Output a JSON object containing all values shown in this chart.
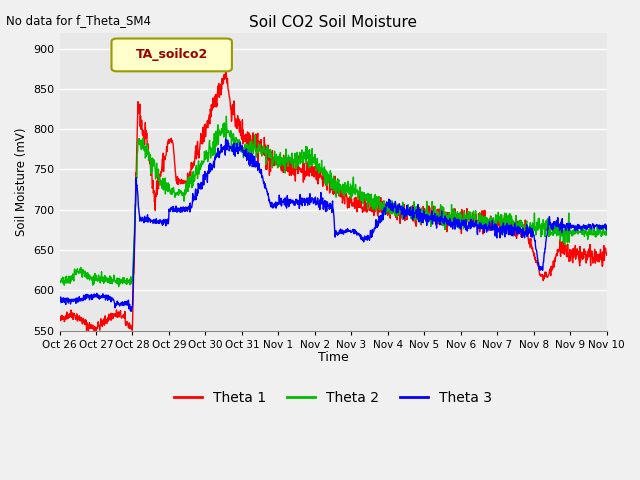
{
  "title": "Soil CO2 Soil Moisture",
  "ylabel": "Soil Moisture (mV)",
  "xlabel": "Time",
  "no_data_text": "No data for f_Theta_SM4",
  "legend_label": "TA_soilco2",
  "ylim": [
    550,
    920
  ],
  "yticks": [
    550,
    600,
    650,
    700,
    750,
    800,
    850,
    900
  ],
  "x_labels": [
    "Oct 26",
    "Oct 27",
    "Oct 28",
    "Oct 29",
    "Oct 30",
    "Oct 31",
    "Nov 1",
    "Nov 2",
    "Nov 3",
    "Nov 4",
    "Nov 5",
    "Nov 6",
    "Nov 7",
    "Nov 8",
    "Nov 9",
    "Nov 10"
  ],
  "fig_bg_color": "#f0f0f0",
  "plot_bg_color": "#e8e8e8",
  "grid_color": "#ffffff",
  "line_colors": {
    "theta1": "#ff0000",
    "theta2": "#00bb00",
    "theta3": "#0000ff"
  },
  "legend_entries": [
    "Theta 1",
    "Theta 2",
    "Theta 3"
  ],
  "legend_colors": [
    "#ff0000",
    "#00bb00",
    "#0000ff"
  ],
  "ta_box_facecolor": "#ffffcc",
  "ta_box_edgecolor": "#999900",
  "ta_text_color": "#990000"
}
